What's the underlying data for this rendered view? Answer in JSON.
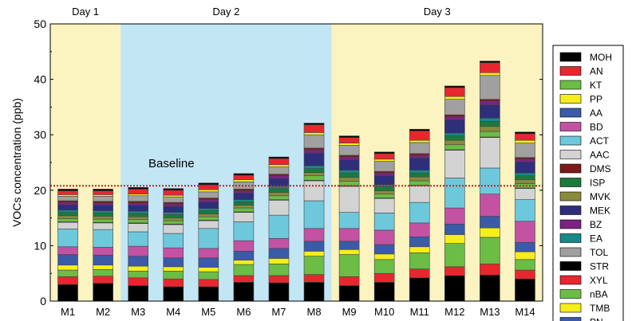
{
  "chart_data": {
    "type": "bar",
    "stacked": true,
    "ylabel": "VOCs concentration (ppb)",
    "xlabel": "",
    "ylim": [
      0,
      50
    ],
    "yticks": [
      0,
      10,
      20,
      30,
      40,
      50
    ],
    "categories": [
      "M1",
      "M2",
      "M3",
      "M4",
      "M5",
      "M6",
      "M7",
      "M8",
      "M9",
      "M10",
      "M11",
      "M12",
      "M13",
      "M14"
    ],
    "days": [
      {
        "label": "Day 1",
        "from": 0,
        "to": 1,
        "color": "#fbf3c0"
      },
      {
        "label": "Day 2",
        "from": 2,
        "to": 7,
        "color": "#c3e6f5"
      },
      {
        "label": "Day 3",
        "from": 8,
        "to": 13,
        "color": "#fbf3c0"
      }
    ],
    "baseline": {
      "label": "Baseline",
      "value": 20.8,
      "color": "#b52828"
    },
    "legend_position": "right",
    "series": [
      {
        "name": "STR",
        "color": "#000000",
        "values": [
          3.0,
          3.2,
          2.8,
          2.6,
          2.6,
          3.4,
          3.3,
          3.4,
          2.8,
          3.4,
          4.2,
          4.6,
          4.7,
          4.0
        ]
      },
      {
        "name": "XYL",
        "color": "#e8262e",
        "values": [
          1.4,
          1.3,
          1.4,
          1.4,
          1.3,
          1.2,
          1.3,
          1.4,
          1.6,
          1.6,
          1.6,
          1.6,
          2.0,
          1.6
        ]
      },
      {
        "name": "nBA",
        "color": "#6bbd45",
        "values": [
          1.2,
          1.2,
          1.2,
          1.4,
          1.4,
          2.0,
          2.1,
          3.3,
          4.0,
          2.5,
          2.9,
          4.2,
          4.8,
          1.9
        ]
      },
      {
        "name": "TMB",
        "color": "#f5ee1b",
        "values": [
          0.9,
          0.8,
          0.9,
          0.8,
          0.8,
          0.8,
          1.0,
          0.9,
          0.9,
          1.0,
          1.1,
          1.6,
          1.7,
          1.4
        ]
      },
      {
        "name": "PN",
        "color": "#3b5aa8",
        "values": [
          1.9,
          1.8,
          1.8,
          1.6,
          1.7,
          1.6,
          1.8,
          1.8,
          1.5,
          1.7,
          1.8,
          1.9,
          2.1,
          1.7
        ]
      },
      {
        "name": "BD",
        "color": "#c352a3",
        "values": [
          1.4,
          1.4,
          1.8,
          1.8,
          1.7,
          1.9,
          1.8,
          2.3,
          2.3,
          2.6,
          2.5,
          2.9,
          4.0,
          3.8
        ]
      },
      {
        "name": "ACT",
        "color": "#6ec8dc",
        "values": [
          3.2,
          3.2,
          2.6,
          2.6,
          3.6,
          3.4,
          4.2,
          5.0,
          2.9,
          3.1,
          3.7,
          5.4,
          4.7,
          3.9
        ]
      },
      {
        "name": "AAC",
        "color": "#d3d3d3",
        "values": [
          1.2,
          1.2,
          1.5,
          1.6,
          1.4,
          1.7,
          2.7,
          3.6,
          4.7,
          2.6,
          3.0,
          5.0,
          5.5,
          2.0
        ]
      },
      {
        "name": "MOH",
        "color": "#000000",
        "values": [
          0.1,
          0.1,
          0.1,
          0.1,
          0.1,
          0.1,
          0.1,
          0.1,
          0.1,
          0.1,
          0.1,
          0.1,
          0.1,
          0.1
        ]
      },
      {
        "name": "KT",
        "color": "#6bbd45",
        "values": [
          0.6,
          0.6,
          0.6,
          0.6,
          0.6,
          0.7,
          0.7,
          0.8,
          0.8,
          0.7,
          0.8,
          0.9,
          1.0,
          0.8
        ]
      },
      {
        "name": "MVK",
        "color": "#8a8a3c",
        "values": [
          0.5,
          0.5,
          0.5,
          0.5,
          0.5,
          0.5,
          0.6,
          0.6,
          0.7,
          0.6,
          0.7,
          0.8,
          0.9,
          0.7
        ]
      },
      {
        "name": "ISP",
        "color": "#1a7a3c",
        "values": [
          0.6,
          0.6,
          0.6,
          0.6,
          0.6,
          0.6,
          0.7,
          0.7,
          0.8,
          0.7,
          0.7,
          0.8,
          0.9,
          0.7
        ]
      },
      {
        "name": "EA",
        "color": "#168a8a",
        "values": [
          0.4,
          0.4,
          0.4,
          0.4,
          0.4,
          0.4,
          0.4,
          0.5,
          0.5,
          0.4,
          0.5,
          0.5,
          0.6,
          0.5
        ]
      },
      {
        "name": "MEK",
        "color": "#2e2e7a",
        "values": [
          1.0,
          1.0,
          1.1,
          1.1,
          1.2,
          1.2,
          1.4,
          2.3,
          1.9,
          1.6,
          2.2,
          2.4,
          2.4,
          2.0
        ]
      },
      {
        "name": "BZ",
        "color": "#7a2480",
        "values": [
          0.4,
          0.4,
          0.4,
          0.4,
          0.4,
          0.4,
          0.5,
          0.6,
          0.5,
          0.5,
          0.5,
          0.6,
          0.7,
          0.5
        ]
      },
      {
        "name": "DMS",
        "color": "#7a1a1a",
        "values": [
          0.3,
          0.3,
          0.3,
          0.3,
          0.3,
          0.3,
          0.3,
          0.3,
          0.3,
          0.3,
          0.3,
          0.3,
          0.3,
          0.3
        ]
      },
      {
        "name": "TOL",
        "color": "#a0a0a0",
        "values": [
          0.8,
          0.9,
          1.0,
          1.0,
          1.1,
          1.3,
          1.3,
          2.4,
          1.8,
          1.8,
          2.0,
          2.8,
          4.3,
          2.6
        ]
      },
      {
        "name": "PP",
        "color": "#f5ee1b",
        "values": [
          0.3,
          0.3,
          0.3,
          0.3,
          0.4,
          0.4,
          0.4,
          0.4,
          0.4,
          0.4,
          0.4,
          0.5,
          0.5,
          0.5
        ]
      },
      {
        "name": "AN",
        "color": "#e8262e",
        "values": [
          0.7,
          0.7,
          0.9,
          0.9,
          0.9,
          0.8,
          1.1,
          1.4,
          1.0,
          1.0,
          1.7,
          1.6,
          1.8,
          1.2
        ]
      },
      {
        "name": "MOH_top",
        "legend": false,
        "color": "#000000",
        "values": [
          0.3,
          0.3,
          0.3,
          0.3,
          0.3,
          0.3,
          0.3,
          0.3,
          0.3,
          0.3,
          0.3,
          0.3,
          0.3,
          0.3
        ]
      }
    ],
    "legend": [
      {
        "name": "MOH",
        "color": "#000000"
      },
      {
        "name": "AN",
        "color": "#e8262e"
      },
      {
        "name": "KT",
        "color": "#6bbd45"
      },
      {
        "name": "PP",
        "color": "#f5ee1b"
      },
      {
        "name": "AA",
        "color": "#3b5aa8"
      },
      {
        "name": "BD",
        "color": "#c352a3"
      },
      {
        "name": "ACT",
        "color": "#6ec8dc"
      },
      {
        "name": "AAC",
        "color": "#d3d3d3"
      },
      {
        "name": "DMS",
        "color": "#7a1a1a"
      },
      {
        "name": "ISP",
        "color": "#1a7a3c"
      },
      {
        "name": "MVK",
        "color": "#8a8a3c"
      },
      {
        "name": "MEK",
        "color": "#2e2e7a"
      },
      {
        "name": "BZ",
        "color": "#7a2480"
      },
      {
        "name": "EA",
        "color": "#168a8a"
      },
      {
        "name": "TOL",
        "color": "#a0a0a0"
      },
      {
        "name": "STR",
        "color": "#000000"
      },
      {
        "name": "XYL",
        "color": "#e8262e"
      },
      {
        "name": "nBA",
        "color": "#6bbd45"
      },
      {
        "name": "TMB",
        "color": "#f5ee1b"
      },
      {
        "name": "PN",
        "color": "#3b5aa8"
      }
    ]
  }
}
